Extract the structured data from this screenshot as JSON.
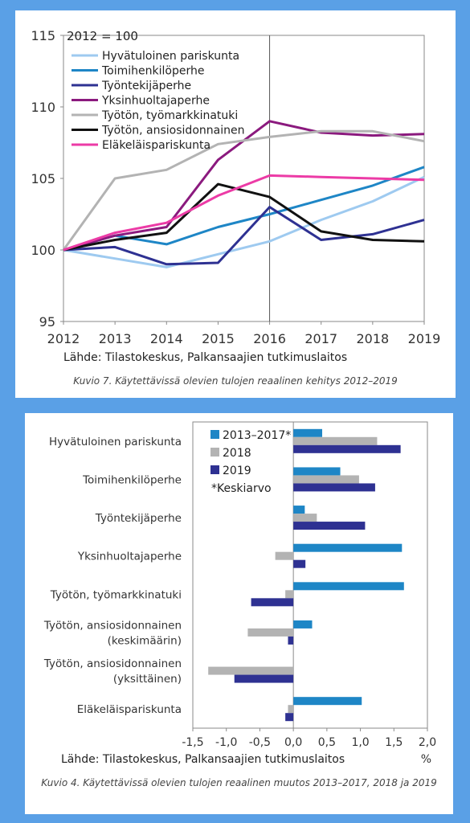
{
  "chart_data": [
    {
      "type": "line",
      "note": "2012 = 100",
      "source": "Lähde: Tilastokeskus, Palkansaajien tutkimuslaitos",
      "caption": "Kuvio 7. Käytettävissä olevien tulojen reaalinen kehitys 2012–2019",
      "x": [
        2012,
        2013,
        2014,
        2015,
        2016,
        2017,
        2018,
        2019
      ],
      "ylim": [
        95,
        115
      ],
      "yticks": [
        95,
        100,
        105,
        110,
        115
      ],
      "vline_at": 2016,
      "legend_position": "top-left",
      "series": [
        {
          "name": "Hyvätuloinen pariskunta",
          "color": "#9ecaf0",
          "values": [
            100,
            99.4,
            98.8,
            99.7,
            100.6,
            102.1,
            103.4,
            105.1
          ]
        },
        {
          "name": "Toimihenkilöperhe",
          "color": "#1e86c6",
          "values": [
            100,
            101.0,
            100.4,
            101.6,
            102.5,
            103.5,
            104.5,
            105.8
          ]
        },
        {
          "name": "Työntekijäperhe",
          "color": "#2e3192",
          "values": [
            100,
            100.2,
            99.0,
            99.1,
            103.0,
            100.7,
            101.1,
            102.1
          ]
        },
        {
          "name": "Yksinhuoltajaperhe",
          "color": "#8b1a7e",
          "values": [
            100,
            101.0,
            101.6,
            106.3,
            109.0,
            108.2,
            108.0,
            108.1
          ]
        },
        {
          "name": "Työtön, työmarkkinatuki",
          "color": "#b3b3b3",
          "values": [
            100,
            105.0,
            105.6,
            107.4,
            107.9,
            108.3,
            108.3,
            107.6
          ]
        },
        {
          "name": "Työtön, ansiosidonnainen",
          "color": "#111111",
          "values": [
            100,
            100.7,
            101.2,
            104.6,
            103.7,
            101.3,
            100.7,
            100.6
          ]
        },
        {
          "name": "Eläkeläispariskunta",
          "color": "#ec3ba6",
          "values": [
            100,
            101.2,
            101.9,
            103.8,
            105.2,
            105.1,
            105.0,
            104.9
          ]
        }
      ]
    },
    {
      "type": "bar",
      "orientation": "horizontal",
      "source": "Lähde: Tilastokeskus, Palkansaajien tutkimuslaitos",
      "caption": "Kuvio 4. Käytettävissä olevien tulojen reaalinen muutos 2013–2017, 2018 ja 2019",
      "unit": "%",
      "xlim": [
        -1.5,
        2.0
      ],
      "xticks": [
        "-1,5",
        "-1,0",
        "-0,5",
        "0,0",
        "0,5",
        "1,0",
        "1,5",
        "2,0"
      ],
      "xtick_values": [
        -1.5,
        -1.0,
        -0.5,
        0.0,
        0.5,
        1.0,
        1.5,
        2.0
      ],
      "legend_position": "top-center",
      "legend_note": "*Keskiarvo",
      "categories": [
        [
          "Hyvätuloinen pariskunta"
        ],
        [
          "Toimihenkilöperhe"
        ],
        [
          "Työntekijäperhe"
        ],
        [
          "Yksinhuoltajaperhe"
        ],
        [
          "Työtön, työmarkkinatuki"
        ],
        [
          "Työtön, ansiosidonnainen",
          "(keskimäärin)"
        ],
        [
          "Työtön, ansiosidonnainen",
          "(yksittäinen)"
        ],
        [
          "Eläkeläispariskunta"
        ]
      ],
      "series": [
        {
          "name": "2013–2017*",
          "color": "#1e86c6",
          "values": [
            0.43,
            0.7,
            0.17,
            1.62,
            1.65,
            0.28,
            0.0,
            1.02
          ]
        },
        {
          "name": "2018",
          "color": "#b3b3b3",
          "values": [
            1.25,
            0.98,
            0.35,
            -0.27,
            -0.12,
            -0.68,
            -1.27,
            -0.08
          ]
        },
        {
          "name": "2019",
          "color": "#2e3192",
          "values": [
            1.6,
            1.22,
            1.07,
            0.18,
            -0.63,
            -0.08,
            -0.88,
            -0.12
          ]
        }
      ]
    }
  ]
}
